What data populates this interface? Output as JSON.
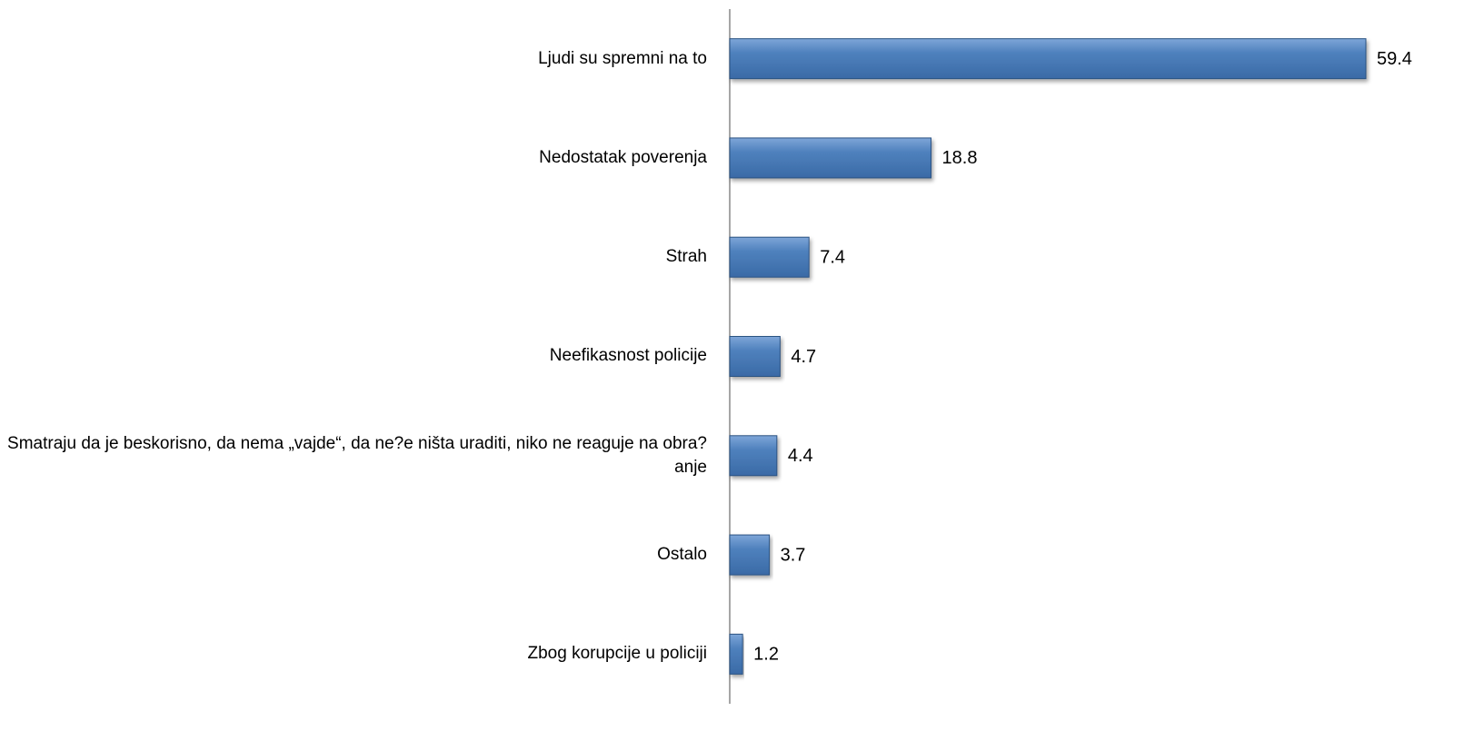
{
  "chart_data": {
    "type": "bar",
    "orientation": "horizontal",
    "categories": [
      "Ljudi su spremni na to",
      "Nedostatak poverenja",
      "Strah",
      "Neefikasnost policije",
      "Smatraju da je beskorisno, da nema „vajde“, da ne?e ništa uraditi, niko ne reaguje na obra?anje",
      "Ostalo",
      "Zbog korupcije u policiji"
    ],
    "values": [
      59.4,
      18.8,
      7.4,
      4.7,
      4.4,
      3.7,
      1.2
    ],
    "color": "#4f81bd"
  }
}
